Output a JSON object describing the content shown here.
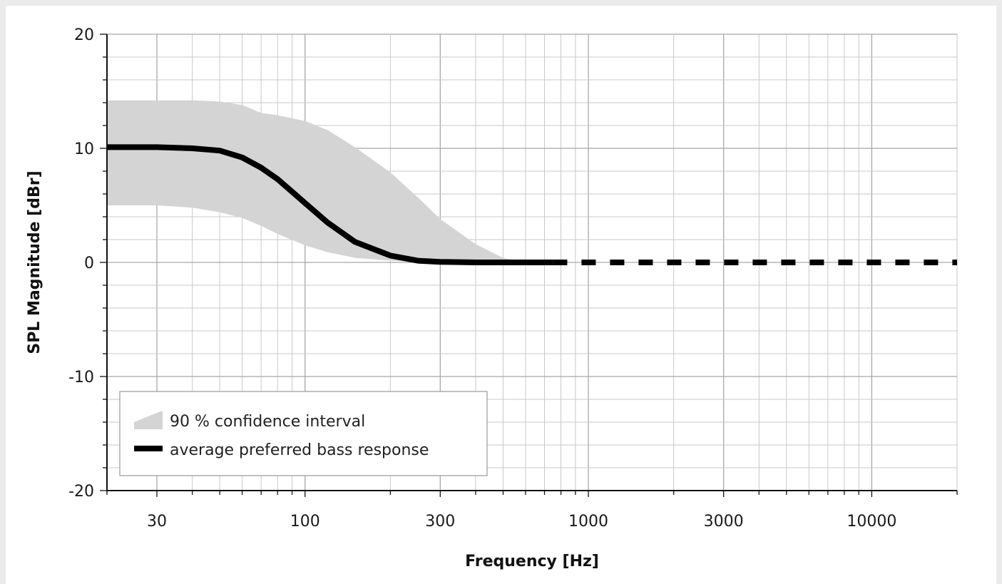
{
  "chart_data": {
    "type": "line",
    "title": "",
    "xlabel": "Frequency [Hz]",
    "ylabel": "SPL Magnitude [dBr]",
    "x_scale": "log",
    "xlim": [
      20,
      20000
    ],
    "ylim": [
      -20,
      20
    ],
    "x_ticks": [
      30,
      100,
      300,
      1000,
      3000,
      10000
    ],
    "x_tick_labels": [
      "30",
      "100",
      "300",
      "1000",
      "3000",
      "10000"
    ],
    "y_ticks": [
      20,
      10,
      0,
      -10,
      -20
    ],
    "y_tick_labels": [
      "20",
      "10",
      "0",
      "-10",
      "-20"
    ],
    "grid": true,
    "legend_position": "bottom-left",
    "colors": {
      "line": "#000000",
      "band": "#d4d4d4",
      "grid": "#c8c8c8",
      "legend_border": "#999999"
    },
    "series": [
      {
        "name": "average preferred bass response",
        "style": "solid",
        "x": [
          20,
          30,
          40,
          50,
          60,
          70,
          80,
          90,
          100,
          120,
          150,
          200,
          250,
          300,
          400,
          500,
          600,
          700,
          750
        ],
        "y": [
          10.1,
          10.1,
          10.0,
          9.8,
          9.2,
          8.3,
          7.3,
          6.2,
          5.2,
          3.5,
          1.8,
          0.6,
          0.15,
          0.05,
          0,
          0,
          0,
          0,
          0
        ]
      },
      {
        "name": "average preferred bass response",
        "style": "dashed",
        "x": [
          750,
          20000
        ],
        "y": [
          0,
          0
        ]
      }
    ],
    "band": {
      "name": "90 % confidence interval",
      "x": [
        20,
        30,
        40,
        50,
        60,
        70,
        80,
        100,
        120,
        150,
        200,
        250,
        300,
        400,
        500,
        600
      ],
      "upper": [
        14.2,
        14.2,
        14.2,
        14.1,
        13.8,
        13.1,
        12.9,
        12.4,
        11.6,
        10.1,
        7.9,
        5.7,
        3.8,
        1.6,
        0.4,
        0
      ],
      "lower": [
        5.0,
        5.0,
        4.8,
        4.4,
        3.9,
        3.2,
        2.5,
        1.5,
        0.9,
        0.4,
        0.15,
        0.05,
        0,
        0,
        0,
        0
      ]
    },
    "legend": [
      {
        "label": "90 % confidence interval",
        "kind": "band"
      },
      {
        "label": "average preferred bass response",
        "kind": "line"
      }
    ]
  }
}
